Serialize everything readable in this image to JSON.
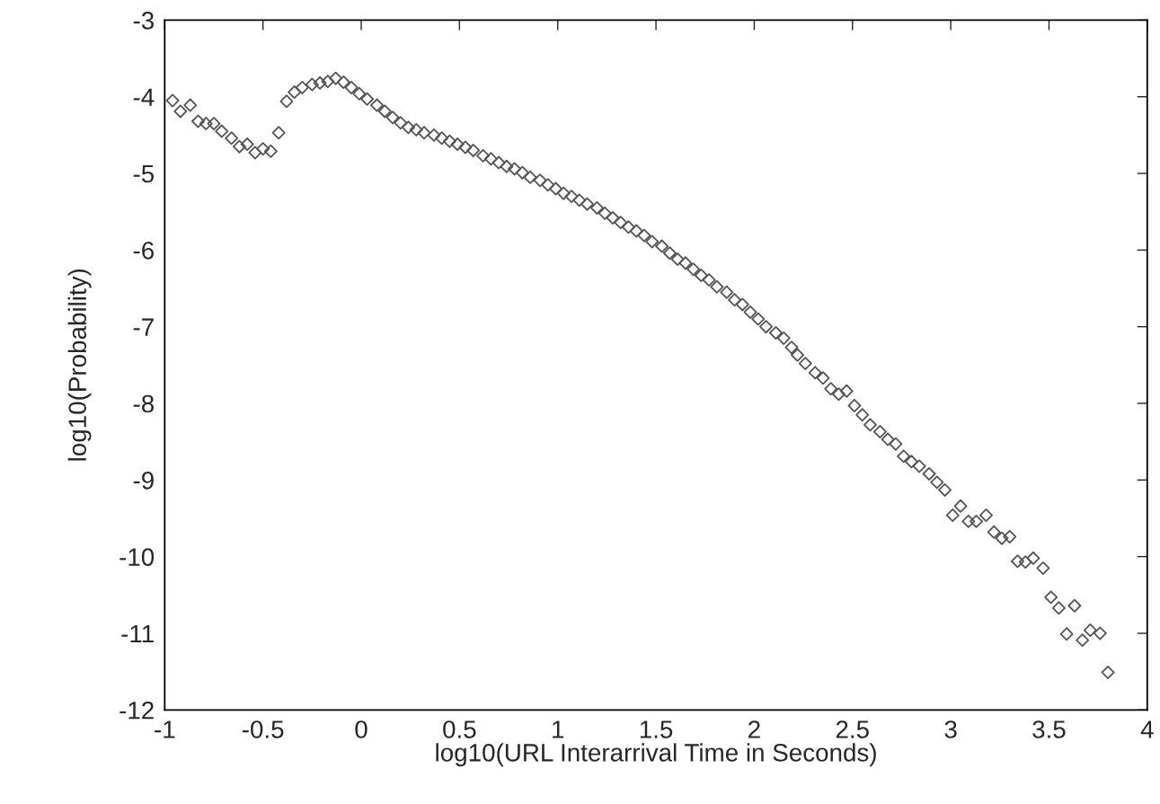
{
  "chart_data": {
    "type": "scatter",
    "xlabel": "log10(URL Interarrival Time in Seconds)",
    "ylabel": "log10(Probability)",
    "x": [
      -0.96,
      -0.92,
      -0.87,
      -0.83,
      -0.79,
      -0.75,
      -0.71,
      -0.66,
      -0.62,
      -0.58,
      -0.54,
      -0.5,
      -0.46,
      -0.42,
      -0.38,
      -0.34,
      -0.3,
      -0.25,
      -0.21,
      -0.17,
      -0.13,
      -0.09,
      -0.05,
      -0.01,
      0.03,
      0.08,
      0.12,
      0.16,
      0.2,
      0.24,
      0.28,
      0.32,
      0.37,
      0.41,
      0.45,
      0.49,
      0.53,
      0.57,
      0.62,
      0.66,
      0.7,
      0.74,
      0.78,
      0.82,
      0.86,
      0.91,
      0.95,
      0.99,
      1.03,
      1.07,
      1.11,
      1.15,
      1.2,
      1.24,
      1.28,
      1.32,
      1.36,
      1.4,
      1.44,
      1.48,
      1.53,
      1.57,
      1.61,
      1.65,
      1.69,
      1.73,
      1.77,
      1.81,
      1.86,
      1.9,
      1.94,
      1.98,
      2.02,
      2.06,
      2.11,
      2.15,
      2.19,
      2.22,
      2.26,
      2.31,
      2.35,
      2.39,
      2.43,
      2.47,
      2.51,
      2.55,
      2.59,
      2.64,
      2.68,
      2.72,
      2.76,
      2.8,
      2.84,
      2.89,
      2.93,
      2.97,
      3.01,
      3.05,
      3.09,
      3.13,
      3.18,
      3.22,
      3.26,
      3.3,
      3.34,
      3.38,
      3.42,
      3.47,
      3.51,
      3.55,
      3.59,
      3.63,
      3.67,
      3.71,
      3.76,
      3.8
    ],
    "series": [
      {
        "color": "#555555",
        "values": [
          -4.05,
          -4.19,
          -4.11,
          -4.32,
          -4.35,
          -4.35,
          -4.45,
          -4.54,
          -4.65,
          -4.62,
          -4.73,
          -4.68,
          -4.71,
          -4.47,
          -4.06,
          -3.94,
          -3.88,
          -3.84,
          -3.82,
          -3.8,
          -3.76,
          -3.81,
          -3.88,
          -3.96,
          -4.03,
          -4.11,
          -4.19,
          -4.27,
          -4.34,
          -4.4,
          -4.43,
          -4.47,
          -4.5,
          -4.54,
          -4.58,
          -4.62,
          -4.66,
          -4.7,
          -4.77,
          -4.81,
          -4.86,
          -4.91,
          -4.94,
          -4.99,
          -5.05,
          -5.09,
          -5.15,
          -5.2,
          -5.26,
          -5.3,
          -5.35,
          -5.4,
          -5.45,
          -5.52,
          -5.58,
          -5.64,
          -5.7,
          -5.75,
          -5.81,
          -5.89,
          -5.95,
          -6.04,
          -6.12,
          -6.17,
          -6.25,
          -6.33,
          -6.39,
          -6.48,
          -6.55,
          -6.65,
          -6.71,
          -6.81,
          -6.9,
          -7.0,
          -7.08,
          -7.15,
          -7.27,
          -7.37,
          -7.48,
          -7.6,
          -7.67,
          -7.81,
          -7.88,
          -7.84,
          -8.03,
          -8.15,
          -8.28,
          -8.37,
          -8.47,
          -8.53,
          -8.69,
          -8.76,
          -8.82,
          -8.92,
          -9.03,
          -9.13,
          -9.46,
          -9.34,
          -9.54,
          -9.54,
          -9.46,
          -9.68,
          -9.76,
          -9.74,
          -10.06,
          -10.07,
          -10.02,
          -10.15,
          -10.53,
          -10.67,
          -11.01,
          -10.64,
          -11.09,
          -10.96,
          -11.0,
          -11.51
        ]
      }
    ],
    "marker": "diamond",
    "xlim": [
      -1,
      4
    ],
    "xticks": [
      -1,
      -0.5,
      0,
      0.5,
      1,
      1.5,
      2,
      2.5,
      3,
      3.5,
      4
    ],
    "ylim": [
      -12,
      -3
    ],
    "yticks": [
      -12,
      -11,
      -10,
      -9,
      -8,
      -7,
      -6,
      -5,
      -4,
      -3
    ],
    "grid": false
  }
}
